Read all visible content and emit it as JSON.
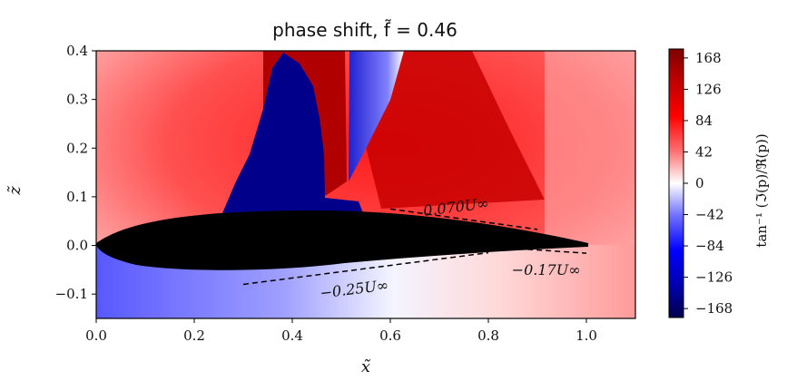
{
  "chart_data": {
    "type": "heatmap",
    "title": "phase shift, f̃ = 0.46",
    "xlabel": "x̃",
    "ylabel": "z̃",
    "xlim": [
      0.0,
      1.1
    ],
    "ylim": [
      -0.15,
      0.4
    ],
    "x_ticks": [
      "0.0",
      "0.2",
      "0.4",
      "0.6",
      "0.8",
      "1.0"
    ],
    "y_ticks": [
      "−0.1",
      "0.0",
      "0.1",
      "0.2",
      "0.3",
      "0.4"
    ],
    "colorbar": {
      "label": "tan⁻¹ (ℑ(p)/ℜ(p))",
      "range": [
        -180,
        180
      ],
      "ticks": [
        "168",
        "126",
        "84",
        "42",
        "0",
        "−42",
        "−84",
        "−126",
        "−168"
      ],
      "colormap": "seismic",
      "colors": {
        "neg": "#00004c",
        "mid": "#ffffff",
        "pos": "#7f0000"
      }
    },
    "annotations": [
      {
        "text": "0.070U∞",
        "line": [
          [
            0.6,
            0.075
          ],
          [
            0.9,
            0.033
          ]
        ]
      },
      {
        "text": "−0.25U∞",
        "line": [
          [
            0.3,
            -0.08
          ],
          [
            0.8,
            -0.015
          ]
        ]
      },
      {
        "text": "−0.17U∞",
        "line": [
          [
            0.88,
            -0.008
          ],
          [
            1.0,
            -0.016
          ]
        ]
      }
    ],
    "body_color": "#000000",
    "body_regions": "airfoil shape from x 0.0 to 1.0, thickness ≈0.07 above and ≈0.06 below chord"
  }
}
